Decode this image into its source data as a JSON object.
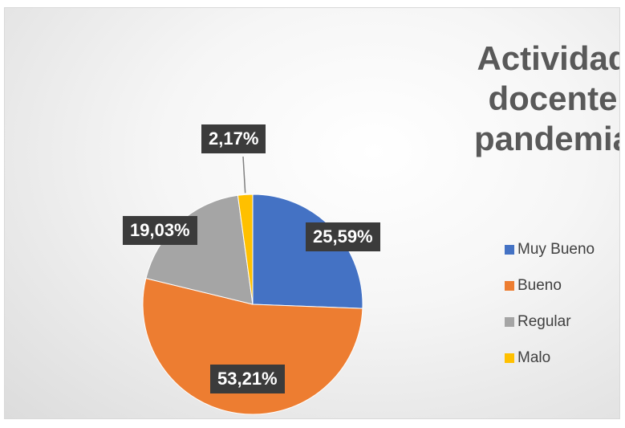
{
  "chart_data": {
    "type": "pie",
    "title_lines": [
      "Actividad",
      "docente",
      "pandemia"
    ],
    "categories": [
      "Muy Bueno",
      "Bueno",
      "Regular",
      "Malo"
    ],
    "values": [
      25.59,
      53.21,
      19.03,
      2.17
    ],
    "labels": [
      "25,59%",
      "53,21%",
      "19,03%",
      "2,17%"
    ],
    "colors": [
      "#4472c4",
      "#ed7d31",
      "#a5a5a5",
      "#ffc000"
    ],
    "legend_position": "right"
  }
}
